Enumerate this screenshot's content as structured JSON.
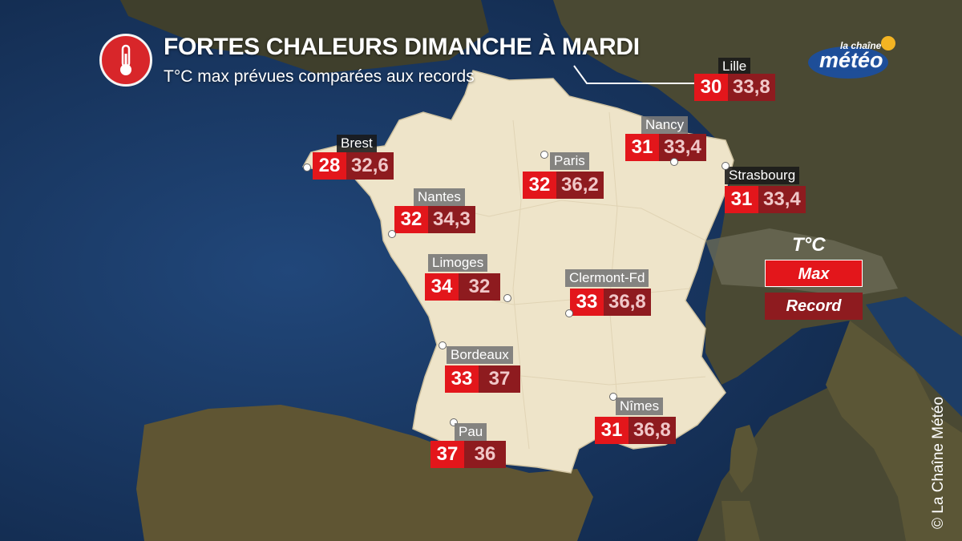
{
  "header": {
    "title": "FORTES CHALEURS DIMANCHE À MARDI",
    "subtitle": "T°C max prévues comparées aux records",
    "icon": "thermometer-icon",
    "icon_color": "#d8262a"
  },
  "logo": {
    "line1": "la chaîne",
    "line2": "météo"
  },
  "legend": {
    "title": "T°C",
    "max_label": "Max",
    "record_label": "Record"
  },
  "colors": {
    "max": "#e3161b",
    "record": "#8e1b1f",
    "land": "#eee4c9",
    "sea": "#1d3d66"
  },
  "cities": [
    {
      "name": "Lille",
      "max": "30",
      "record": "33,8"
    },
    {
      "name": "Brest",
      "max": "28",
      "record": "32,6"
    },
    {
      "name": "Paris",
      "max": "32",
      "record": "36,2"
    },
    {
      "name": "Nancy",
      "max": "31",
      "record": "33,4"
    },
    {
      "name": "Strasbourg",
      "max": "31",
      "record": "33,4"
    },
    {
      "name": "Nantes",
      "max": "32",
      "record": "34,3"
    },
    {
      "name": "Limoges",
      "max": "34",
      "record": "32"
    },
    {
      "name": "Clermont-Fd",
      "max": "33",
      "record": "36,8"
    },
    {
      "name": "Bordeaux",
      "max": "33",
      "record": "37"
    },
    {
      "name": "Nîmes",
      "max": "31",
      "record": "36,8"
    },
    {
      "name": "Pau",
      "max": "37",
      "record": "36"
    }
  ],
  "copyright": "© La Chaîne Météo"
}
